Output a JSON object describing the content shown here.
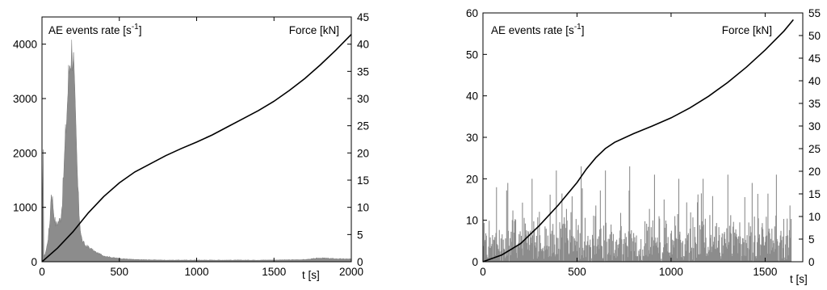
{
  "chart_data": [
    {
      "type": "area",
      "x_tick_labels": [
        "0",
        "500",
        "1000",
        "1500",
        "2000"
      ],
      "xlabel": "t [s]",
      "left_label": "AE events rate [s",
      "left_label_exp": "-1",
      "left_label_close": "]",
      "right_label": "Force [kN]",
      "xlim": [
        0,
        2000
      ],
      "ylim_left": [
        0,
        4500
      ],
      "ylim_right": [
        0,
        45
      ],
      "left_tick_labels": [
        "0",
        "1000",
        "2000",
        "3000",
        "4000"
      ],
      "right_tick_labels": [
        "0",
        "5",
        "10",
        "15",
        "20",
        "25",
        "30",
        "35",
        "40",
        "45"
      ],
      "series": [
        {
          "axis": "left",
          "style": "filled-area",
          "x": [
            0,
            8,
            12,
            20,
            30,
            40,
            50,
            60,
            70,
            80,
            90,
            100,
            110,
            120,
            130,
            140,
            150,
            160,
            170,
            180,
            190,
            200,
            205,
            210,
            220,
            230,
            240,
            250,
            260,
            280,
            300,
            320,
            350,
            400,
            450,
            500,
            600,
            800,
            1000,
            1200,
            1400,
            1600,
            1700,
            1800,
            1900,
            2000
          ],
          "values": [
            0,
            2300,
            80,
            150,
            250,
            450,
            700,
            1300,
            1100,
            800,
            680,
            720,
            750,
            800,
            1050,
            1600,
            2200,
            2700,
            3300,
            3700,
            3900,
            3900,
            3600,
            3100,
            2300,
            1500,
            900,
            550,
            380,
            300,
            270,
            230,
            170,
            110,
            80,
            60,
            40,
            30,
            30,
            30,
            30,
            35,
            40,
            70,
            55,
            50
          ]
        },
        {
          "axis": "right",
          "style": "line",
          "x": [
            0,
            100,
            200,
            300,
            400,
            500,
            600,
            700,
            800,
            900,
            1000,
            1100,
            1200,
            1300,
            1400,
            1500,
            1600,
            1700,
            1800,
            1900,
            2000
          ],
          "values": [
            0,
            2.5,
            5.5,
            9,
            12,
            14.5,
            16.5,
            18,
            19.5,
            20.8,
            22,
            23.3,
            24.8,
            26.3,
            27.8,
            29.5,
            31.5,
            33.7,
            36.2,
            38.9,
            41.8
          ]
        }
      ]
    },
    {
      "type": "area",
      "x_tick_labels": [
        "0",
        "500",
        "1000",
        "1500"
      ],
      "xlabel": "t [s]",
      "left_label": "AE events rate [s",
      "left_label_exp": "-1",
      "left_label_close": "]",
      "right_label": "Force [kN]",
      "xlim": [
        0,
        1700
      ],
      "ylim_left": [
        0,
        60
      ],
      "ylim_right": [
        0,
        55
      ],
      "left_tick_labels": [
        "0",
        "10",
        "20",
        "30",
        "40",
        "50",
        "60"
      ],
      "right_tick_labels": [
        "0",
        "5",
        "10",
        "15",
        "20",
        "25",
        "30",
        "35",
        "40",
        "45",
        "50",
        "55"
      ],
      "series": [
        {
          "axis": "left",
          "style": "noisy-bars",
          "x_range": [
            0,
            1640
          ],
          "typical_range": [
            0,
            10
          ],
          "peak_values": [
            21,
            19,
            20,
            22,
            23,
            22,
            23,
            21,
            20,
            20,
            21,
            19,
            21
          ]
        },
        {
          "axis": "right",
          "style": "line",
          "x": [
            0,
            100,
            200,
            300,
            400,
            500,
            550,
            600,
            650,
            700,
            800,
            900,
            1000,
            1100,
            1200,
            1300,
            1400,
            1500,
            1600,
            1650
          ],
          "values": [
            0,
            1.5,
            4,
            8,
            12.5,
            17.5,
            20.5,
            23,
            25,
            26.4,
            28.3,
            30,
            31.8,
            34,
            36.6,
            39.6,
            43,
            46.8,
            51,
            53.5
          ]
        }
      ]
    }
  ]
}
